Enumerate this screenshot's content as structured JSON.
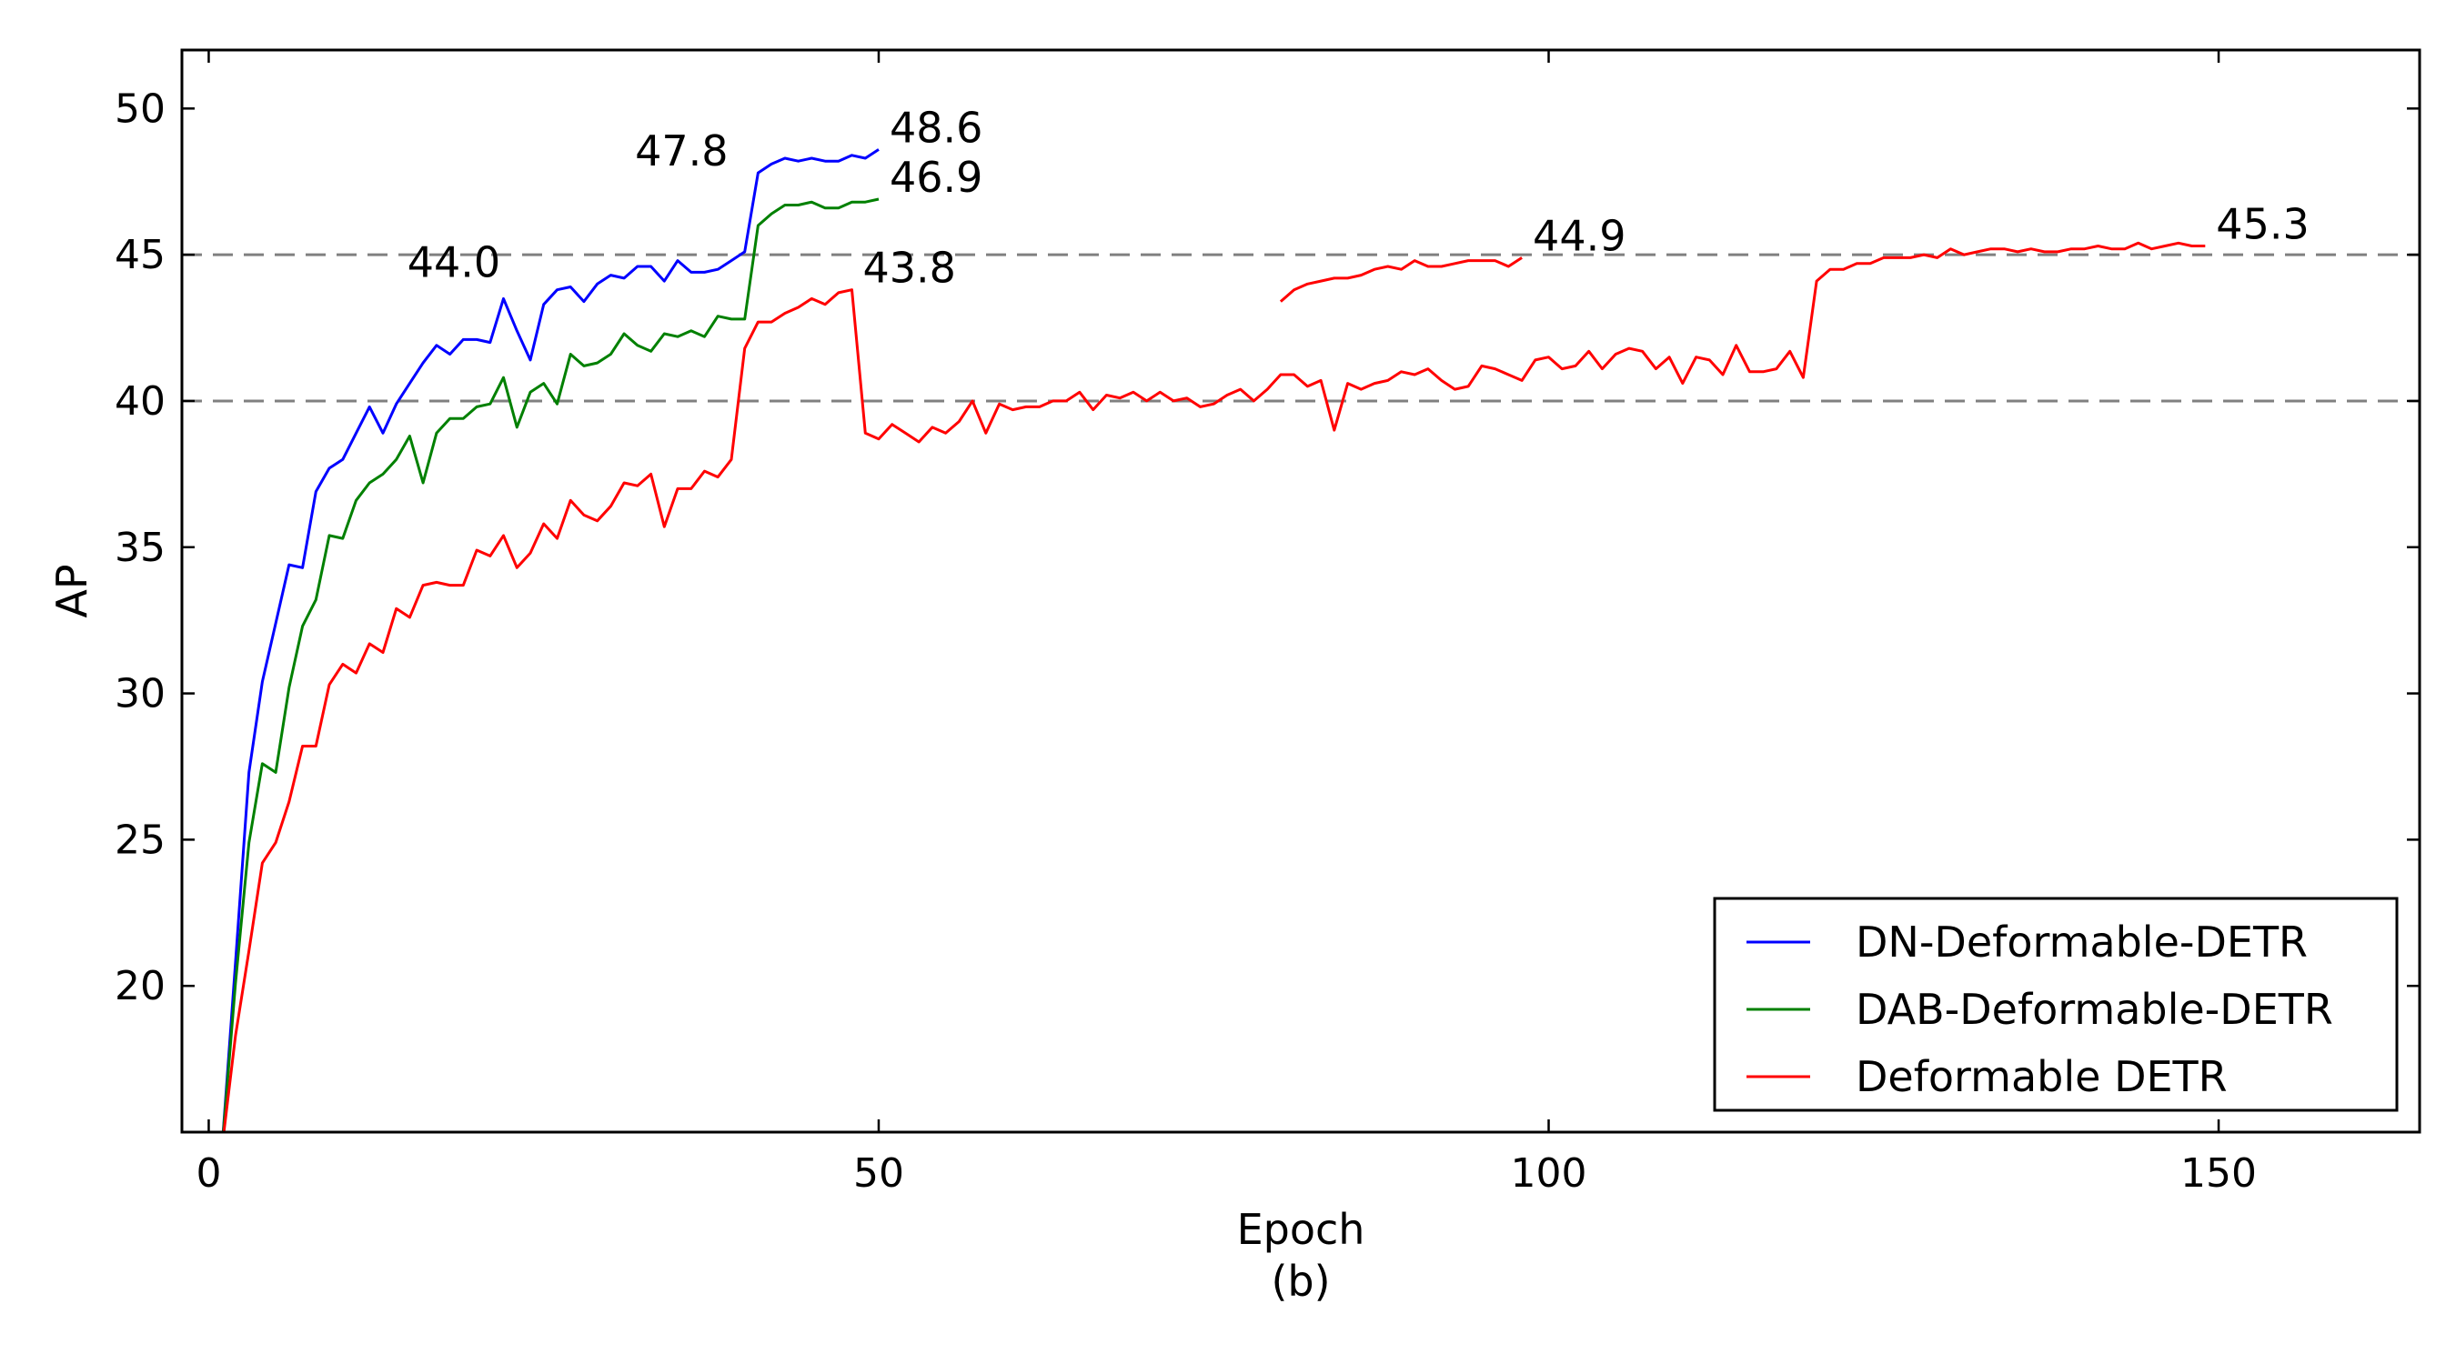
{
  "chart_data": {
    "type": "line",
    "title": "",
    "xlabel": "Epoch",
    "caption": "(b)",
    "ylabel": "AP",
    "xlim": [
      -2,
      165
    ],
    "ylim": [
      15,
      52
    ],
    "xticks": [
      0,
      50,
      100,
      150
    ],
    "yticks": [
      20,
      25,
      30,
      35,
      40,
      45,
      50
    ],
    "reference_lines": [
      {
        "y": 40,
        "style": "dashed",
        "color": "#808080"
      },
      {
        "y": 45,
        "style": "dashed",
        "color": "#808080"
      }
    ],
    "legend": {
      "placement": "bottom-right"
    },
    "series": [
      {
        "name": "DN-Deformable-DETR",
        "color": "#0000ff",
        "x": [
          1,
          2,
          3,
          4,
          5,
          6,
          7,
          8,
          9,
          10,
          11,
          12,
          13,
          14,
          15,
          16,
          17,
          18,
          19,
          20,
          21,
          22,
          23,
          24,
          25,
          26,
          27,
          28,
          29,
          30,
          31,
          32,
          33,
          34,
          35,
          36,
          37,
          38,
          39,
          40,
          41,
          42,
          43,
          44,
          45,
          46,
          47,
          48,
          49,
          50
        ],
        "y": [
          14.5,
          20.8,
          27.3,
          30.4,
          32.4,
          34.4,
          34.3,
          36.9,
          37.7,
          38.0,
          38.9,
          39.8,
          38.9,
          39.9,
          40.6,
          41.3,
          41.9,
          41.6,
          42.1,
          42.1,
          42.0,
          43.5,
          42.4,
          41.4,
          43.3,
          43.8,
          43.9,
          43.4,
          44.0,
          44.3,
          44.2,
          44.6,
          44.6,
          44.1,
          44.8,
          44.4,
          44.4,
          44.5,
          44.8,
          45.1,
          47.8,
          48.1,
          48.3,
          48.2,
          48.3,
          48.2,
          48.2,
          48.4,
          48.3,
          48.6
        ]
      },
      {
        "name": "DAB-Deformable-DETR",
        "color": "#008000",
        "x": [
          1,
          2,
          3,
          4,
          5,
          6,
          7,
          8,
          9,
          10,
          11,
          12,
          13,
          14,
          15,
          16,
          17,
          18,
          19,
          20,
          21,
          22,
          23,
          24,
          25,
          26,
          27,
          28,
          29,
          30,
          31,
          32,
          33,
          34,
          35,
          36,
          37,
          38,
          39,
          40,
          41,
          42,
          43,
          44,
          45,
          46,
          47,
          48,
          49,
          50
        ],
        "y": [
          14.5,
          20.1,
          24.9,
          27.6,
          27.3,
          30.2,
          32.3,
          33.2,
          35.4,
          35.3,
          36.6,
          37.2,
          37.5,
          38.0,
          38.8,
          37.2,
          38.9,
          39.4,
          39.4,
          39.8,
          39.9,
          40.8,
          39.1,
          40.3,
          40.6,
          39.9,
          41.6,
          41.2,
          41.3,
          41.6,
          42.3,
          41.9,
          41.7,
          42.3,
          42.2,
          42.4,
          42.2,
          42.9,
          42.8,
          42.8,
          46.0,
          46.4,
          46.7,
          46.7,
          46.8,
          46.6,
          46.6,
          46.8,
          46.8,
          46.9
        ]
      },
      {
        "name": "Deformable DETR",
        "color": "#ff0000",
        "x": [
          1,
          2,
          3,
          4,
          5,
          6,
          7,
          8,
          9,
          10,
          11,
          12,
          13,
          14,
          15,
          16,
          17,
          18,
          19,
          20,
          21,
          22,
          23,
          24,
          25,
          26,
          27,
          28,
          29,
          30,
          31,
          32,
          33,
          34,
          35,
          36,
          37,
          38,
          39,
          40,
          41,
          42,
          43,
          44,
          45,
          46,
          47,
          48,
          49,
          50,
          51,
          52,
          53,
          54,
          55,
          56,
          57,
          58,
          59,
          60,
          61,
          62,
          63,
          64,
          65,
          66,
          67,
          68,
          69,
          70,
          71,
          72,
          73,
          74,
          75,
          76,
          77,
          78,
          79,
          80,
          81,
          82,
          83,
          84,
          85,
          86,
          87,
          88,
          89,
          90,
          91,
          92,
          93,
          94,
          95,
          96,
          97,
          98,
          99,
          100,
          101,
          102,
          103,
          104,
          105,
          106,
          107,
          108,
          109,
          110,
          111,
          112,
          113,
          114,
          115,
          116,
          117,
          118,
          119,
          120,
          121,
          122,
          123,
          124,
          125,
          126,
          127,
          128,
          129,
          130,
          131,
          132,
          133,
          134,
          135,
          136,
          137,
          138,
          139,
          140,
          141,
          142,
          143,
          144,
          145,
          146,
          147,
          148,
          149
        ],
        "y": [
          14.5,
          18.3,
          21.2,
          24.2,
          24.9,
          26.3,
          28.2,
          28.2,
          30.3,
          31.0,
          30.7,
          31.7,
          31.4,
          32.9,
          32.6,
          33.7,
          33.8,
          33.7,
          33.7,
          34.9,
          34.7,
          35.4,
          34.3,
          34.8,
          35.8,
          35.3,
          36.6,
          36.1,
          35.9,
          36.4,
          37.2,
          37.1,
          37.5,
          35.7,
          37.0,
          37.0,
          37.6,
          37.4,
          38.0,
          41.8,
          42.7,
          42.7,
          43.0,
          43.2,
          43.5,
          43.3,
          43.7,
          43.8,
          38.9,
          38.7,
          39.2,
          38.9,
          38.6,
          39.1,
          38.9,
          39.3,
          40.0,
          38.9,
          39.9,
          39.7,
          39.8,
          39.8,
          40.0,
          40.0,
          40.3,
          39.7,
          40.2,
          40.1,
          40.3,
          40.0,
          40.3,
          40.0,
          40.1,
          39.8,
          39.9,
          40.2,
          40.4,
          40.0,
          40.4,
          40.9,
          40.9,
          40.5,
          40.7,
          39.0,
          40.6,
          40.4,
          40.6,
          40.7,
          41.0,
          40.9,
          41.1,
          40.7,
          40.4,
          40.5,
          41.2,
          41.1,
          40.9,
          40.7,
          41.4,
          41.5,
          41.1,
          41.2,
          41.7,
          41.1,
          41.6,
          41.8,
          41.7,
          41.1,
          41.5,
          40.6,
          41.5,
          41.4,
          40.9,
          41.9,
          41.0,
          41.0,
          41.1,
          41.7,
          40.8,
          44.1,
          44.5,
          44.5,
          44.7,
          44.7,
          44.9,
          44.9,
          44.9,
          45.0,
          44.9,
          45.2,
          45.0,
          45.1,
          45.2,
          45.2,
          45.1,
          45.2,
          45.1,
          45.1,
          45.2,
          45.2,
          45.3,
          45.2,
          45.2,
          45.4,
          45.2,
          45.3,
          45.4,
          45.3,
          45.3
        ]
      },
      {
        "name": "Deformable DETR",
        "color": "#ff0000",
        "x": [
          80,
          81,
          82,
          83,
          84,
          85,
          86,
          87,
          88,
          89,
          90,
          91,
          92,
          93,
          94,
          95,
          96,
          97,
          98
        ],
        "y": [
          43.4,
          43.8,
          44.0,
          44.1,
          44.2,
          44.2,
          44.3,
          44.5,
          44.6,
          44.5,
          44.8,
          44.6,
          44.6,
          44.7,
          44.8,
          44.8,
          44.8,
          44.6,
          44.9
        ]
      }
    ],
    "annotations": [
      {
        "text": "44.0",
        "x": 14,
        "y": 44.0
      },
      {
        "text": "47.8",
        "x": 31,
        "y": 47.8
      },
      {
        "text": "48.6",
        "x": 50,
        "y": 48.6
      },
      {
        "text": "46.9",
        "x": 50,
        "y": 46.9
      },
      {
        "text": "43.8",
        "x": 48,
        "y": 43.8
      },
      {
        "text": "44.9",
        "x": 98,
        "y": 44.9
      },
      {
        "text": "45.3",
        "x": 149,
        "y": 45.3
      }
    ]
  }
}
